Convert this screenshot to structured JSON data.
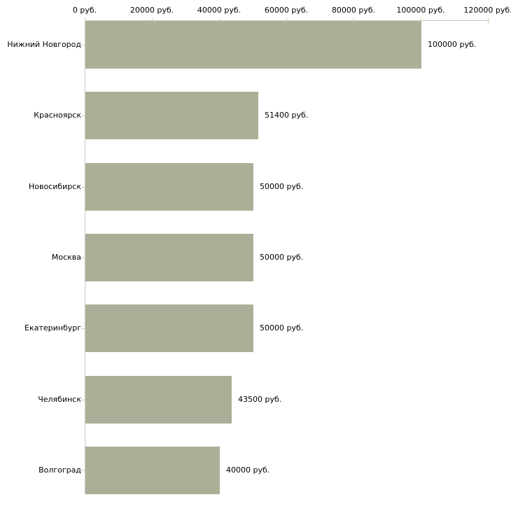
{
  "chart_data": {
    "type": "bar",
    "orientation": "horizontal",
    "title": "",
    "categories": [
      "Нижний Новгород",
      "Красноярск",
      "Новосибирск",
      "Москва",
      "Екатеринбург",
      "Челябинск",
      "Волгоград"
    ],
    "values": [
      100000,
      51400,
      50000,
      50000,
      50000,
      43500,
      40000
    ],
    "value_labels": [
      "100000 руб.",
      "51400 руб.",
      "50000 руб.",
      "50000 руб.",
      "50000 руб.",
      "43500 руб.",
      "40000 руб."
    ],
    "unit": "руб.",
    "x_axis": {
      "position": "top",
      "range": [
        0,
        120000
      ],
      "ticks": [
        0,
        20000,
        40000,
        60000,
        80000,
        100000,
        120000
      ],
      "tick_labels": [
        "0 руб.",
        "20000 руб.",
        "40000 руб.",
        "60000 руб.",
        "80000 руб.",
        "100000 руб.",
        "120000 руб."
      ]
    },
    "legend": "none",
    "grid": false,
    "colors": {
      "bar": "#aab097",
      "axis_line": "#c9c9c1",
      "x_tick": "#d9dcb4",
      "category_tick": "#cdd1a6",
      "text": "#000000",
      "background": "#ffffff"
    }
  }
}
